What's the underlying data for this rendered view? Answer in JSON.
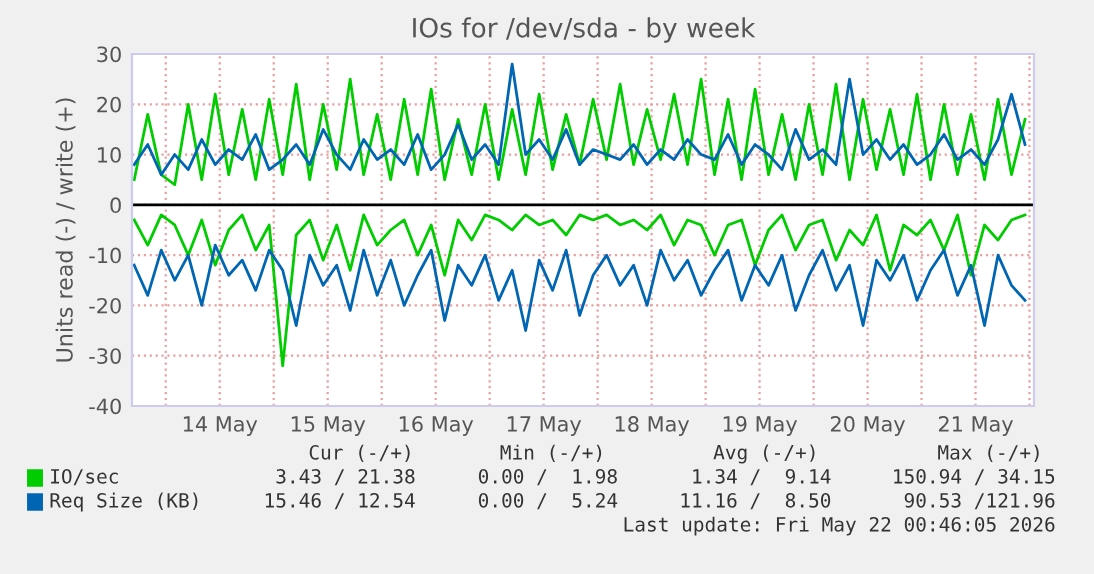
{
  "chart_data": {
    "type": "line",
    "title": "IOs for /dev/sda - by week",
    "ylabel": "Units read (-) / write (+)",
    "x": [
      "2026-05-13T17:00",
      "2026-05-13T20:00",
      "2026-05-13T23:00",
      "2026-05-14T02:00",
      "2026-05-14T05:00",
      "2026-05-14T08:00",
      "2026-05-14T11:00",
      "2026-05-14T14:00",
      "2026-05-14T17:00",
      "2026-05-14T20:00",
      "2026-05-14T23:00",
      "2026-05-15T02:00",
      "2026-05-15T05:00",
      "2026-05-15T08:00",
      "2026-05-15T11:00",
      "2026-05-15T14:00",
      "2026-05-15T17:00",
      "2026-05-15T20:00",
      "2026-05-15T23:00",
      "2026-05-16T02:00",
      "2026-05-16T05:00",
      "2026-05-16T08:00",
      "2026-05-16T11:00",
      "2026-05-16T14:00",
      "2026-05-16T17:00",
      "2026-05-16T20:00",
      "2026-05-16T23:00",
      "2026-05-17T02:00",
      "2026-05-17T05:00",
      "2026-05-17T08:00",
      "2026-05-17T11:00",
      "2026-05-17T14:00",
      "2026-05-17T17:00",
      "2026-05-17T20:00",
      "2026-05-17T23:00",
      "2026-05-18T02:00",
      "2026-05-18T05:00",
      "2026-05-18T08:00",
      "2026-05-18T11:00",
      "2026-05-18T14:00",
      "2026-05-18T17:00",
      "2026-05-18T20:00",
      "2026-05-18T23:00",
      "2026-05-19T02:00",
      "2026-05-19T05:00",
      "2026-05-19T08:00",
      "2026-05-19T11:00",
      "2026-05-19T14:00",
      "2026-05-19T17:00",
      "2026-05-19T20:00",
      "2026-05-19T23:00",
      "2026-05-20T02:00",
      "2026-05-20T05:00",
      "2026-05-20T08:00",
      "2026-05-20T11:00",
      "2026-05-20T14:00",
      "2026-05-20T17:00",
      "2026-05-20T20:00",
      "2026-05-20T23:00",
      "2026-05-21T02:00",
      "2026-05-21T05:00",
      "2026-05-21T08:00",
      "2026-05-21T11:00",
      "2026-05-21T14:00",
      "2026-05-21T17:00",
      "2026-05-21T20:00",
      "2026-05-21T23:00"
    ],
    "series": [
      {
        "name": "IO/sec",
        "color": "#00cc00",
        "values": [
          5,
          18,
          6,
          4,
          20,
          5,
          22,
          6,
          19,
          5,
          21,
          6,
          24,
          5,
          20,
          7,
          25,
          6,
          18,
          5,
          21,
          6,
          23,
          5,
          17,
          6,
          20,
          5,
          19,
          6,
          22,
          7,
          18,
          8,
          21,
          9,
          24,
          8,
          19,
          9,
          22,
          8,
          25,
          6,
          21,
          5,
          23,
          6,
          18,
          5,
          20,
          6,
          24,
          5,
          21,
          7,
          19,
          6,
          22,
          5,
          20,
          6,
          18,
          5,
          21,
          6,
          17
        ]
      },
      {
        "color": "#00cc00",
        "values": [
          -3,
          -8,
          -2,
          -4,
          -10,
          -3,
          -12,
          -5,
          -2,
          -9,
          -4,
          -32,
          -6,
          -3,
          -11,
          -4,
          -13,
          -2,
          -8,
          -5,
          -3,
          -10,
          -4,
          -14,
          -3,
          -7,
          -2,
          -3,
          -5,
          -2,
          -4,
          -3,
          -6,
          -2,
          -3,
          -2,
          -4,
          -3,
          -5,
          -2,
          -8,
          -3,
          -4,
          -10,
          -4,
          -3,
          -12,
          -5,
          -2,
          -9,
          -4,
          -3,
          -11,
          -5,
          -8,
          -2,
          -13,
          -4,
          -6,
          -3,
          -9,
          -2,
          -14,
          -4,
          -7,
          -3,
          -2
        ]
      },
      {
        "name": "Req Size (KB)",
        "color": "#0066b3",
        "values": [
          8,
          12,
          6,
          10,
          7,
          13,
          8,
          11,
          9,
          14,
          7,
          9,
          12,
          8,
          15,
          10,
          7,
          13,
          9,
          11,
          8,
          14,
          7,
          10,
          16,
          9,
          12,
          8,
          28,
          10,
          13,
          9,
          15,
          8,
          11,
          10,
          9,
          12,
          8,
          11,
          9,
          13,
          10,
          9,
          14,
          8,
          12,
          10,
          7,
          15,
          9,
          11,
          8,
          25,
          10,
          13,
          9,
          12,
          8,
          10,
          14,
          9,
          11,
          8,
          13,
          22,
          12
        ]
      },
      {
        "color": "#0066b3",
        "values": [
          -12,
          -18,
          -9,
          -15,
          -10,
          -20,
          -8,
          -14,
          -11,
          -17,
          -9,
          -13,
          -24,
          -10,
          -16,
          -12,
          -21,
          -9,
          -18,
          -11,
          -20,
          -14,
          -9,
          -23,
          -12,
          -16,
          -10,
          -19,
          -13,
          -25,
          -11,
          -17,
          -9,
          -22,
          -14,
          -10,
          -16,
          -12,
          -20,
          -9,
          -15,
          -11,
          -18,
          -13,
          -9,
          -19,
          -12,
          -16,
          -10,
          -21,
          -14,
          -9,
          -17,
          -12,
          -24,
          -11,
          -15,
          -10,
          -19,
          -13,
          -9,
          -18,
          -12,
          -24,
          -10,
          -16,
          -19
        ]
      }
    ],
    "xlim": [
      "2026-05-13T16:30",
      "2026-05-22T01:00"
    ],
    "xticks": [
      {
        "value": "2026-05-14T00:00",
        "label": null
      },
      {
        "value": "2026-05-14T12:00",
        "label": "14 May"
      },
      {
        "value": "2026-05-15T00:00",
        "label": null
      },
      {
        "value": "2026-05-15T12:00",
        "label": "15 May"
      },
      {
        "value": "2026-05-16T00:00",
        "label": null
      },
      {
        "value": "2026-05-16T12:00",
        "label": "16 May"
      },
      {
        "value": "2026-05-17T00:00",
        "label": null
      },
      {
        "value": "2026-05-17T12:00",
        "label": "17 May"
      },
      {
        "value": "2026-05-18T00:00",
        "label": null
      },
      {
        "value": "2026-05-18T12:00",
        "label": "18 May"
      },
      {
        "value": "2026-05-19T00:00",
        "label": null
      },
      {
        "value": "2026-05-19T12:00",
        "label": "19 May"
      },
      {
        "value": "2026-05-20T00:00",
        "label": null
      },
      {
        "value": "2026-05-20T12:00",
        "label": "20 May"
      },
      {
        "value": "2026-05-21T00:00",
        "label": null
      },
      {
        "value": "2026-05-21T12:00",
        "label": "21 May"
      },
      {
        "value": "2026-05-22T00:00",
        "label": null
      }
    ],
    "ylim": [
      -40,
      30
    ],
    "yticks": [
      -40,
      -30,
      -20,
      -10,
      0,
      10,
      20,
      30
    ],
    "grid": true,
    "legend": "bottom",
    "ref_lines": [
      {
        "axis": "y",
        "value": 0,
        "color": "#000000"
      }
    ],
    "annotations": [
      "Cur (-/+)",
      "Min (-/+)",
      "Avg (-/+)",
      "Max (-/+)",
      "3.43 / 21.38",
      "0.00 /  1.98",
      "1.34 /  9.14",
      "150.94 / 34.15",
      "15.46 / 12.54",
      "0.00 /  5.24",
      "11.16 /  8.50",
      "90.53 /121.96",
      "Last update: Fri May 22 00:46:05 2026"
    ]
  }
}
